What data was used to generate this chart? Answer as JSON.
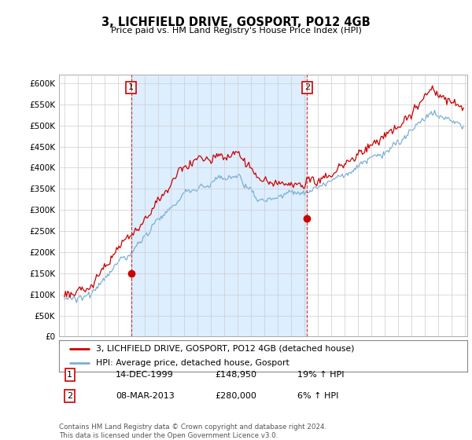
{
  "title": "3, LICHFIELD DRIVE, GOSPORT, PO12 4GB",
  "subtitle": "Price paid vs. HM Land Registry's House Price Index (HPI)",
  "ylim": [
    0,
    620000
  ],
  "yticks": [
    0,
    50000,
    100000,
    150000,
    200000,
    250000,
    300000,
    350000,
    400000,
    450000,
    500000,
    550000,
    600000
  ],
  "price_paid_color": "#cc0000",
  "hpi_color": "#7ab0d4",
  "sale1_year": 2000.0,
  "sale1_price": 148950,
  "sale1_label": "1",
  "sale2_year": 2013.2,
  "sale2_price": 280000,
  "sale2_label": "2",
  "shade_color": "#ddeeff",
  "legend_entries": [
    "3, LICHFIELD DRIVE, GOSPORT, PO12 4GB (detached house)",
    "HPI: Average price, detached house, Gosport"
  ],
  "annotation1_date": "14-DEC-1999",
  "annotation1_price": "£148,950",
  "annotation1_hpi": "19% ↑ HPI",
  "annotation2_date": "08-MAR-2013",
  "annotation2_price": "£280,000",
  "annotation2_hpi": "6% ↑ HPI",
  "footer": "Contains HM Land Registry data © Crown copyright and database right 2024.\nThis data is licensed under the Open Government Licence v3.0.",
  "background_color": "#ffffff",
  "grid_color": "#cccccc"
}
